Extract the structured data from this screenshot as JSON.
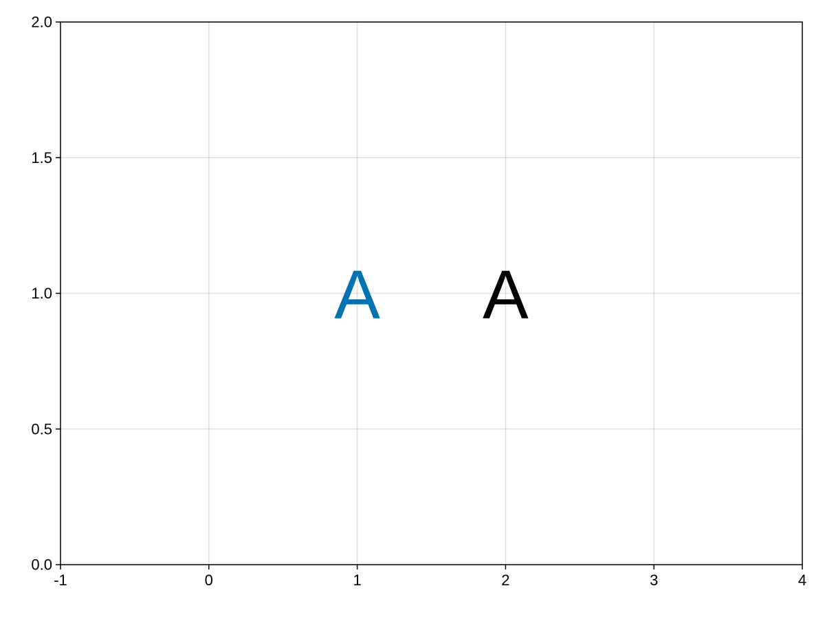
{
  "chart_data": {
    "type": "scatter",
    "title": "",
    "xlabel": "",
    "ylabel": "",
    "xlim": [
      -1,
      4
    ],
    "ylim": [
      0,
      2
    ],
    "x_ticks": [
      -1,
      0,
      1,
      2,
      3,
      4
    ],
    "y_ticks": [
      0,
      0.5,
      1,
      1.5,
      2
    ],
    "x_tick_labels": [
      "-1",
      "0",
      "1",
      "2",
      "3",
      "4"
    ],
    "y_tick_labels": [
      "0.0",
      "0.5",
      "1.0",
      "1.5",
      "2.0"
    ],
    "grid": true,
    "legend": "none",
    "points": [
      {
        "x": 1,
        "y": 1,
        "marker_text": "A",
        "color": "#0072B2"
      },
      {
        "x": 2,
        "y": 1,
        "marker_text": "A",
        "color": "#000000"
      }
    ]
  }
}
